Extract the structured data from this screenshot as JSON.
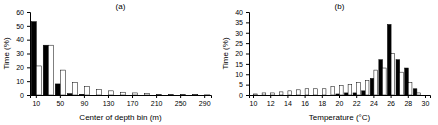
{
  "chart_data": [
    {
      "type": "bar",
      "title": "(a)",
      "x_label": "Center of depth bin (m)",
      "y_label": "Time (%)",
      "categories": [
        10,
        null,
        50,
        null,
        90,
        null,
        130,
        null,
        170,
        null,
        210,
        null,
        250,
        null,
        290
      ],
      "series": [
        {
          "color": "#000000",
          "values": [
            53,
            36,
            8,
            1,
            0.5,
            0,
            0,
            0,
            0,
            0,
            0,
            0,
            0,
            0,
            0
          ]
        },
        {
          "color": "#ffffff",
          "values": [
            21,
            36,
            18,
            9,
            6,
            4,
            3,
            2,
            1.5,
            1,
            0.5,
            0.5,
            0.3,
            0.2,
            0.1
          ]
        }
      ],
      "ylim": [
        0,
        60
      ],
      "yticks": [
        0,
        10,
        20,
        30,
        40,
        50,
        60
      ]
    },
    {
      "type": "bar",
      "title": "(b)",
      "x_label": "Temperature (°C)",
      "y_label": "Time (%)",
      "categories": [
        10,
        null,
        12,
        null,
        14,
        null,
        16,
        null,
        18,
        null,
        20,
        null,
        22,
        null,
        24,
        null,
        26,
        null,
        28,
        null,
        30
      ],
      "series": [
        {
          "color": "#000000",
          "values": [
            0,
            0,
            0,
            0,
            0,
            0,
            0,
            0,
            0,
            0,
            0.5,
            1,
            1,
            2,
            8,
            17,
            34,
            17,
            13,
            3,
            0
          ]
        },
        {
          "color": "#ffffff",
          "values": [
            0.5,
            1,
            1,
            1.5,
            2,
            2.5,
            3,
            3,
            3,
            4,
            4.5,
            5,
            6,
            7,
            12,
            13,
            20,
            11,
            6,
            1,
            0
          ]
        }
      ],
      "ylim": [
        0,
        40
      ],
      "yticks": [
        0,
        5,
        10,
        15,
        20,
        25,
        30,
        35,
        40
      ]
    }
  ]
}
